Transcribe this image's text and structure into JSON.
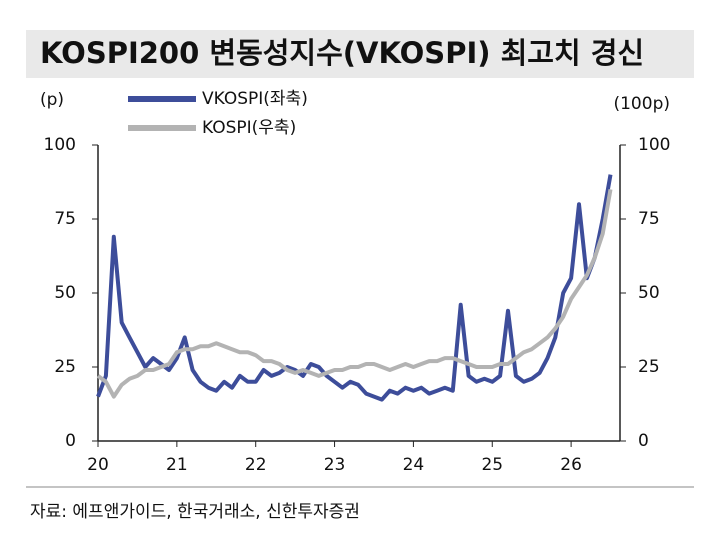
{
  "chart_data": {
    "type": "line",
    "title": "KOSPI200 변동성지수(VKOSPI) 최고치 경신",
    "y_label": "(p)",
    "y2_label": "(100p)",
    "source": "자료: 에프앤가이드, 한국거래소, 신한투자증권",
    "x": [
      20.0,
      20.1,
      20.2,
      20.3,
      20.4,
      20.5,
      20.6,
      20.7,
      20.8,
      20.9,
      21.0,
      21.1,
      21.2,
      21.3,
      21.4,
      21.5,
      21.6,
      21.7,
      21.8,
      21.9,
      22.0,
      22.1,
      22.2,
      22.3,
      22.4,
      22.5,
      22.6,
      22.7,
      22.8,
      22.9,
      23.0,
      23.1,
      23.2,
      23.3,
      23.4,
      23.5,
      23.6,
      23.7,
      23.8,
      23.9,
      24.0,
      24.1,
      24.2,
      24.3,
      24.4,
      24.5,
      24.6,
      24.7,
      24.8,
      24.9,
      25.0,
      25.1,
      25.2,
      25.3,
      25.4,
      25.5,
      25.6,
      25.7,
      25.8,
      25.9,
      26.0,
      26.1,
      26.2,
      26.3,
      26.4,
      26.5
    ],
    "series": [
      {
        "name": "VKOSPI(좌축)",
        "color": "#3d4d9a",
        "axis": "y",
        "values": [
          15,
          22,
          69,
          40,
          35,
          30,
          25,
          28,
          26,
          24,
          28,
          35,
          24,
          20,
          18,
          17,
          20,
          18,
          22,
          20,
          20,
          24,
          22,
          23,
          25,
          24,
          22,
          26,
          25,
          22,
          20,
          18,
          20,
          19,
          16,
          15,
          14,
          17,
          16,
          18,
          17,
          18,
          16,
          17,
          18,
          17,
          46,
          22,
          20,
          21,
          20,
          22,
          44,
          22,
          20,
          21,
          23,
          28,
          35,
          50,
          55,
          80,
          55,
          62,
          75,
          90
        ]
      },
      {
        "name": "KOSPI(우축)",
        "color": "#b3b3b3",
        "axis": "y2",
        "values": [
          22,
          20,
          15,
          19,
          21,
          22,
          24,
          24,
          25,
          26,
          30,
          31,
          31,
          32,
          32,
          33,
          32,
          31,
          30,
          30,
          29,
          27,
          27,
          26,
          24,
          23,
          24,
          23,
          22,
          23,
          24,
          24,
          25,
          25,
          26,
          26,
          25,
          24,
          25,
          26,
          25,
          26,
          27,
          27,
          28,
          28,
          27,
          26,
          25,
          25,
          25,
          26,
          26,
          28,
          30,
          31,
          33,
          35,
          38,
          42,
          48,
          52,
          56,
          62,
          70,
          85
        ]
      }
    ],
    "xlim": [
      20,
      26.62
    ],
    "xticks": [
      20,
      21,
      22,
      23,
      24,
      25,
      26
    ],
    "ylim": [
      0,
      100
    ],
    "yticks": [
      0,
      25,
      50,
      75,
      100
    ],
    "y2lim": [
      0,
      100
    ],
    "y2ticks": [
      0,
      25,
      50,
      75,
      100
    ]
  }
}
